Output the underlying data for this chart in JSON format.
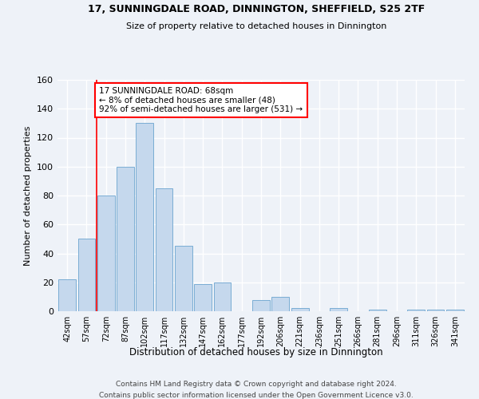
{
  "title_line1": "17, SUNNINGDALE ROAD, DINNINGTON, SHEFFIELD, S25 2TF",
  "title_line2": "Size of property relative to detached houses in Dinnington",
  "xlabel": "Distribution of detached houses by size in Dinnington",
  "ylabel": "Number of detached properties",
  "bar_color": "#c5d8ed",
  "bar_edge_color": "#7aadd4",
  "categories": [
    "42sqm",
    "57sqm",
    "72sqm",
    "87sqm",
    "102sqm",
    "117sqm",
    "132sqm",
    "147sqm",
    "162sqm",
    "177sqm",
    "192sqm",
    "206sqm",
    "221sqm",
    "236sqm",
    "251sqm",
    "266sqm",
    "281sqm",
    "296sqm",
    "311sqm",
    "326sqm",
    "341sqm"
  ],
  "values": [
    22,
    50,
    80,
    100,
    130,
    85,
    45,
    19,
    20,
    0,
    8,
    10,
    2,
    0,
    2,
    0,
    1,
    0,
    1,
    1,
    1
  ],
  "ylim": [
    0,
    160
  ],
  "yticks": [
    0,
    20,
    40,
    60,
    80,
    100,
    120,
    140,
    160
  ],
  "property_line_x": 1.5,
  "annotation_text": "17 SUNNINGDALE ROAD: 68sqm\n← 8% of detached houses are smaller (48)\n92% of semi-detached houses are larger (531) →",
  "annotation_box_color": "white",
  "annotation_box_edge_color": "red",
  "vline_color": "red",
  "footer_line1": "Contains HM Land Registry data © Crown copyright and database right 2024.",
  "footer_line2": "Contains public sector information licensed under the Open Government Licence v3.0.",
  "background_color": "#eef2f8",
  "grid_color": "white"
}
